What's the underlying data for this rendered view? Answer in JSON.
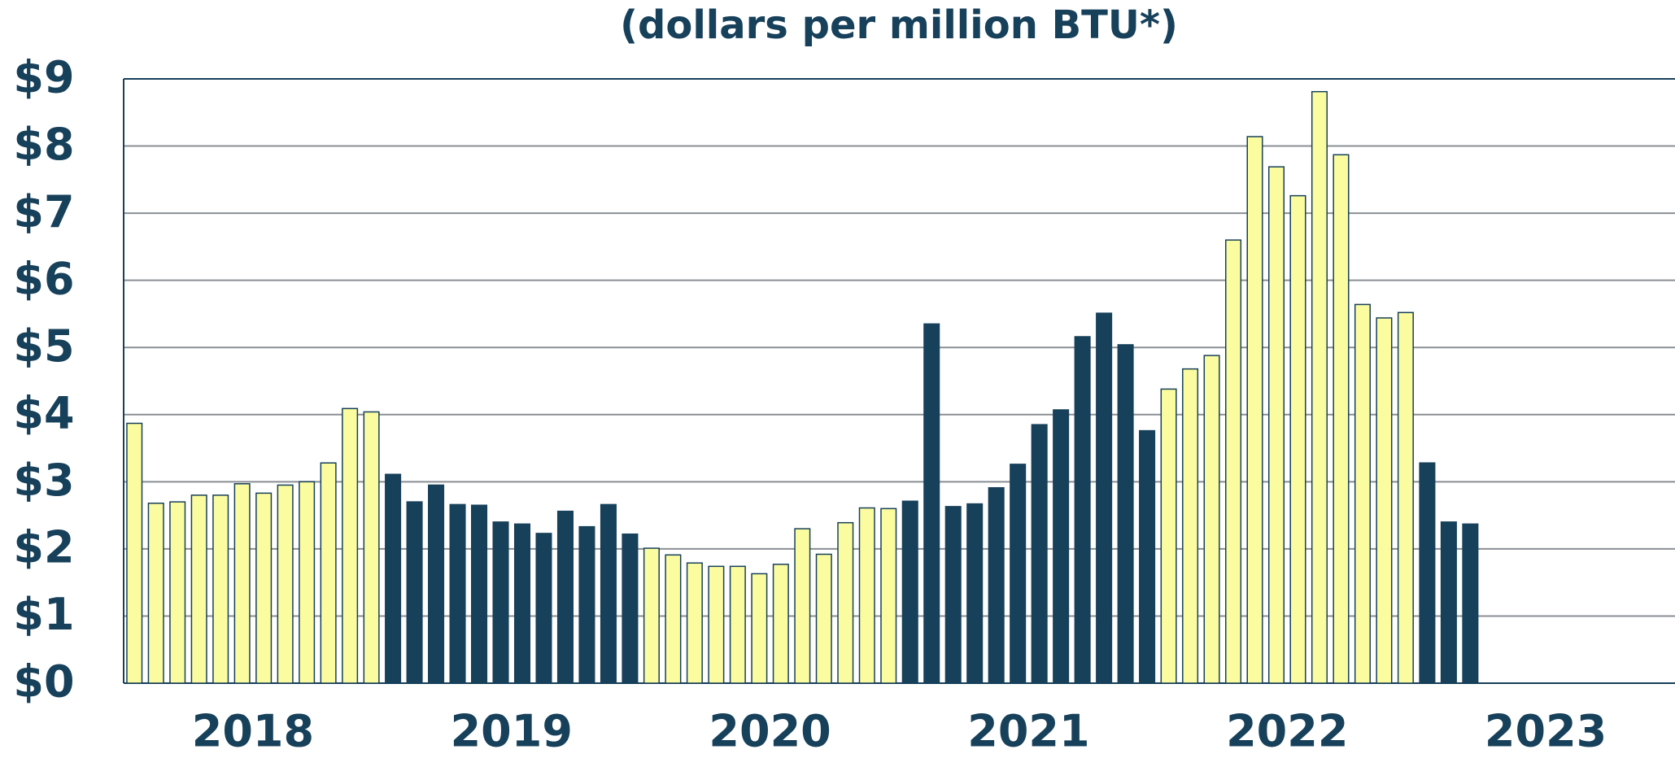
{
  "chart_data": {
    "type": "bar",
    "title": "(dollars per million BTU*)",
    "ylim": [
      0,
      9
    ],
    "yticks": [
      {
        "value": 0,
        "label": "$0"
      },
      {
        "value": 1,
        "label": "$1"
      },
      {
        "value": 2,
        "label": "$2"
      },
      {
        "value": 3,
        "label": "$3"
      },
      {
        "value": 4,
        "label": "$4"
      },
      {
        "value": 5,
        "label": "$5"
      },
      {
        "value": 6,
        "label": "$6"
      },
      {
        "value": 7,
        "label": "$7"
      },
      {
        "value": 8,
        "label": "$8"
      },
      {
        "value": 9,
        "label": "$9"
      }
    ],
    "grid": true,
    "series": [
      {
        "name": "2018",
        "color": "#fbfca0",
        "values": [
          3.87,
          2.68,
          2.7,
          2.8,
          2.8,
          2.97,
          2.83,
          2.95,
          3.0,
          3.28,
          4.09,
          4.04
        ]
      },
      {
        "name": "2019",
        "color": "#17405a",
        "values": [
          3.11,
          2.7,
          2.95,
          2.66,
          2.65,
          2.4,
          2.37,
          2.23,
          2.56,
          2.33,
          2.66,
          2.22
        ]
      },
      {
        "name": "2020",
        "color": "#fbfca0",
        "values": [
          2.01,
          1.91,
          1.79,
          1.74,
          1.74,
          1.63,
          1.77,
          2.3,
          1.92,
          2.39,
          2.61,
          2.6
        ]
      },
      {
        "name": "2021",
        "color": "#17405a",
        "values": [
          2.71,
          5.35,
          2.63,
          2.67,
          2.91,
          3.26,
          3.85,
          4.07,
          5.16,
          5.51,
          5.04,
          3.76
        ]
      },
      {
        "name": "2022",
        "color": "#fbfca0",
        "values": [
          4.38,
          4.68,
          4.88,
          6.6,
          8.14,
          7.69,
          7.26,
          8.81,
          7.87,
          5.64,
          5.44,
          5.52
        ]
      },
      {
        "name": "2023",
        "color": "#17405a",
        "values": [
          3.28,
          2.4,
          2.37
        ]
      }
    ]
  }
}
